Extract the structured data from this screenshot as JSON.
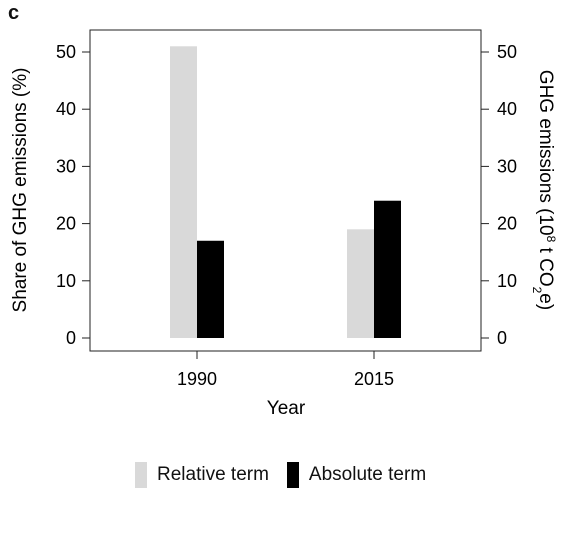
{
  "panel_letter": "c",
  "colors": {
    "relative": "#d9d9d9",
    "absolute": "#000000",
    "axis": "#222222"
  },
  "chart_data": {
    "type": "bar",
    "categories": [
      "1990",
      "2015"
    ],
    "series": [
      {
        "name": "Relative term",
        "values": [
          51,
          19
        ]
      },
      {
        "name": "Absolute term",
        "values": [
          17,
          24
        ]
      }
    ],
    "xlabel": "Year",
    "ylabel_left": "Share of GHG emissions (%)",
    "ylabel_right": {
      "main": "GHG emissions (10",
      "sup": "8",
      "mid": " t CO",
      "sub": "2",
      "end": "e)"
    },
    "ylim": [
      0,
      50
    ],
    "yticks": [
      0,
      10,
      20,
      30,
      40,
      50
    ],
    "legend_position": "bottom",
    "grid": false
  }
}
